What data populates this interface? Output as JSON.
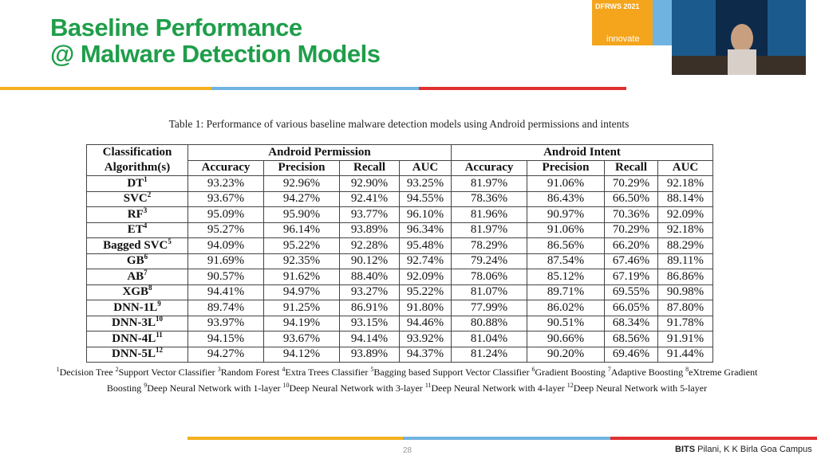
{
  "header": {
    "title": [
      "Baseline Performance",
      "@ Malware Detection Models"
    ],
    "logo": "innovate",
    "event": "DFRWS 2021"
  },
  "table": {
    "caption": "Table 1: Performance of various baseline malware detection models using Android permissions and intents",
    "header_groups": [
      "Classification Algorithm(s)",
      "Android Permission",
      "Android Intent"
    ],
    "columns": [
      "Accuracy",
      "Precision",
      "Recall",
      "AUC",
      "Accuracy",
      "Precision",
      "Recall",
      "AUC"
    ],
    "rows": [
      {
        "name": "DT",
        "sup": "1",
        "values": [
          "93.23%",
          "92.96%",
          "92.90%",
          "93.25%",
          "81.97%",
          "91.06%",
          "70.29%",
          "92.18%"
        ]
      },
      {
        "name": "SVC",
        "sup": "2",
        "values": [
          "93.67%",
          "94.27%",
          "92.41%",
          "94.55%",
          "78.36%",
          "86.43%",
          "66.50%",
          "88.14%"
        ]
      },
      {
        "name": "RF",
        "sup": "3",
        "values": [
          "95.09%",
          "95.90%",
          "93.77%",
          "96.10%",
          "81.96%",
          "90.97%",
          "70.36%",
          "92.09%"
        ]
      },
      {
        "name": "ET",
        "sup": "4",
        "values": [
          "95.27%",
          "96.14%",
          "93.89%",
          "96.34%",
          "81.97%",
          "91.06%",
          "70.29%",
          "92.18%"
        ]
      },
      {
        "name": "Bagged SVC",
        "sup": "5",
        "values": [
          "94.09%",
          "95.22%",
          "92.28%",
          "95.48%",
          "78.29%",
          "86.56%",
          "66.20%",
          "88.29%"
        ]
      },
      {
        "name": "GB",
        "sup": "6",
        "values": [
          "91.69%",
          "92.35%",
          "90.12%",
          "92.74%",
          "79.24%",
          "87.54%",
          "67.46%",
          "89.11%"
        ]
      },
      {
        "name": "AB",
        "sup": "7",
        "values": [
          "90.57%",
          "91.62%",
          "88.40%",
          "92.09%",
          "78.06%",
          "85.12%",
          "67.19%",
          "86.86%"
        ]
      },
      {
        "name": "XGB",
        "sup": "8",
        "values": [
          "94.41%",
          "94.97%",
          "93.27%",
          "95.22%",
          "81.07%",
          "89.71%",
          "69.55%",
          "90.98%"
        ]
      },
      {
        "name": "DNN-1L",
        "sup": "9",
        "values": [
          "89.74%",
          "91.25%",
          "86.91%",
          "91.80%",
          "77.99%",
          "86.02%",
          "66.05%",
          "87.80%"
        ]
      },
      {
        "name": "DNN-3L",
        "sup": "10",
        "values": [
          "93.97%",
          "94.19%",
          "93.15%",
          "94.46%",
          "80.88%",
          "90.51%",
          "68.34%",
          "91.78%"
        ]
      },
      {
        "name": "DNN-4L",
        "sup": "11",
        "values": [
          "94.15%",
          "93.67%",
          "94.14%",
          "93.92%",
          "81.04%",
          "90.66%",
          "68.56%",
          "91.91%"
        ]
      },
      {
        "name": "DNN-5L",
        "sup": "12",
        "values": [
          "94.27%",
          "94.12%",
          "93.89%",
          "94.37%",
          "81.24%",
          "90.20%",
          "69.46%",
          "91.44%"
        ]
      }
    ]
  },
  "footnotes": [
    {
      "sup": "1",
      "text": "Decision Tree"
    },
    {
      "sup": "2",
      "text": "Support Vector Classifier"
    },
    {
      "sup": "3",
      "text": "Random Forest"
    },
    {
      "sup": "4",
      "text": "Extra Trees Classifier"
    },
    {
      "sup": "5",
      "text": "Bagging based Support Vector Classifier"
    },
    {
      "sup": "6",
      "text": "Gradient Boosting"
    },
    {
      "sup": "7",
      "text": "Adaptive Boosting"
    },
    {
      "sup": "8",
      "text": "eXtreme Gradient Boosting"
    },
    {
      "sup": "9",
      "text": "Deep Neural Network with 1-layer"
    },
    {
      "sup": "10",
      "text": "Deep Neural Network with 3-layer"
    },
    {
      "sup": "11",
      "text": "Deep Neural Network with 4-layer"
    },
    {
      "sup": "12",
      "text": "Deep Neural Network with 5-layer"
    }
  ],
  "footer": {
    "page": "28",
    "org_bold": "BITS",
    "org": " Pilani, K K Birla Goa Campus"
  }
}
